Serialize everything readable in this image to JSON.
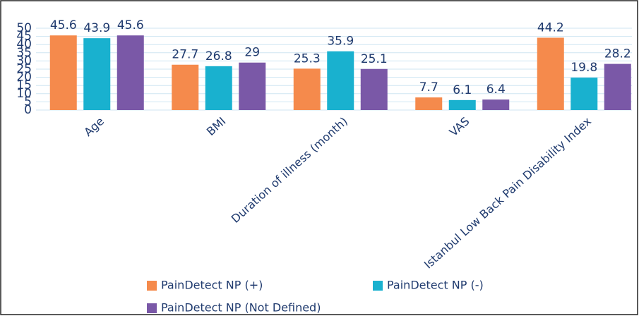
{
  "chart_data": {
    "type": "bar",
    "categories": [
      "Age",
      "BMI",
      "Duration of illness (month)",
      "VAS",
      "Istanbul Low Back Pain Disability Index"
    ],
    "series": [
      {
        "name": "PainDetect NP (+)",
        "color": "#f58a4c",
        "values": [
          45.6,
          27.7,
          25.3,
          7.7,
          44.2
        ]
      },
      {
        "name": "PainDetect NP (-)",
        "color": "#19b1cf",
        "values": [
          43.9,
          26.8,
          35.9,
          6.1,
          19.8
        ]
      },
      {
        "name": "PainDetect NP (Not Defined)",
        "color": "#7a58a7",
        "values": [
          45.6,
          29,
          25.1,
          6.4,
          28.2
        ]
      }
    ],
    "ylim": [
      0,
      50
    ],
    "yticks": [
      0,
      5,
      10,
      15,
      20,
      25,
      30,
      35,
      40,
      45,
      50
    ],
    "grid": true
  }
}
